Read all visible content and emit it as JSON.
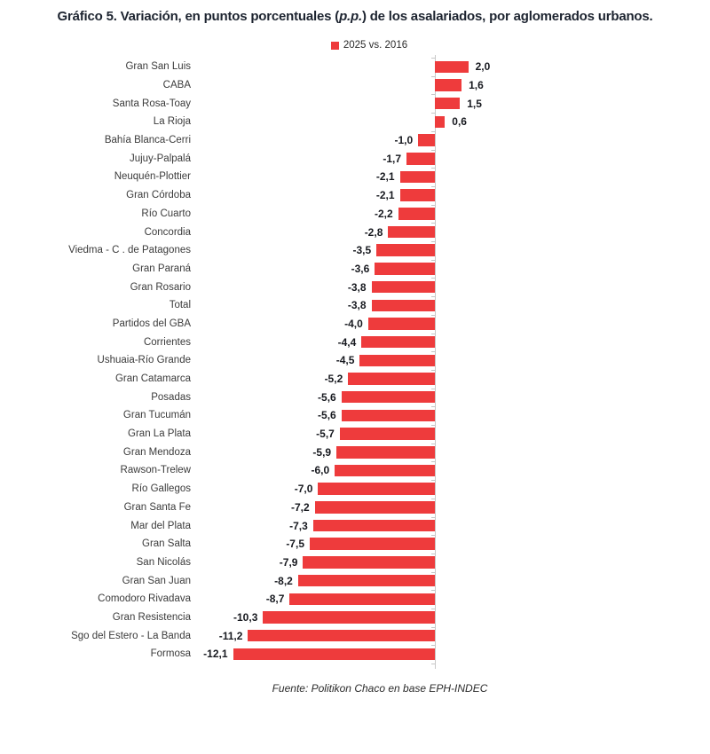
{
  "title": {
    "prefix": "Gráfico 5. Variación, en puntos porcentuales (",
    "italic": "p.p.",
    "suffix": ") de los asalariados, por aglomerados urbanos."
  },
  "legend": {
    "label": "2025 vs. 2016"
  },
  "source": "Fuente: Politikon Chaco en base EPH-INDEC",
  "colors": {
    "bar": "#ee3b3c",
    "axis": "#c9c9c9",
    "title_text": "#1d2430",
    "category_text": "#3b3b3b",
    "value_text": "#17191f"
  },
  "chart_data": {
    "type": "bar",
    "orientation": "horizontal",
    "title": "Gráfico 5. Variación, en puntos porcentuales (p.p.) de los asalariados, por aglomerados urbanos.",
    "series_name": "2025 vs. 2016",
    "legend_position": "top-center",
    "grid": false,
    "xlim": [
      -13,
      3
    ],
    "xlabel": "",
    "ylabel": "",
    "value_label_format": "decimal-comma, 1 decimal",
    "categories": [
      "Gran San Luis",
      "CABA",
      "Santa Rosa-Toay",
      "La Rioja",
      "Bahía Blanca-Cerri",
      "Jujuy-Palpalá",
      "Neuquén-Plottier",
      "Gran Córdoba",
      "Río Cuarto",
      "Concordia",
      "Viedma - C . de Patagones",
      "Gran Paraná",
      "Gran Rosario",
      "Total",
      "Partidos del GBA",
      "Corrientes",
      "Ushuaia-Río Grande",
      "Gran Catamarca",
      "Posadas",
      "Gran Tucumán",
      "Gran La Plata",
      "Gran Mendoza",
      "Rawson-Trelew",
      "Río Gallegos",
      "Gran Santa Fe",
      "Mar del Plata",
      "Gran Salta",
      "San Nicolás",
      "Gran San Juan",
      "Comodoro Rivadava",
      "Gran Resistencia",
      "Sgo del Estero - La Banda",
      "Formosa"
    ],
    "values": [
      2.0,
      1.6,
      1.5,
      0.6,
      -1.0,
      -1.7,
      -2.1,
      -2.1,
      -2.2,
      -2.8,
      -3.5,
      -3.6,
      -3.8,
      -3.8,
      -4.0,
      -4.4,
      -4.5,
      -5.2,
      -5.6,
      -5.6,
      -5.7,
      -5.9,
      -6.0,
      -7.0,
      -7.2,
      -7.3,
      -7.5,
      -7.9,
      -8.2,
      -8.7,
      -10.3,
      -11.2,
      -12.1
    ],
    "value_labels": [
      "2,0",
      "1,6",
      "1,5",
      "0,6",
      "-1,0",
      "-1,7",
      "-2,1",
      "-2,1",
      "-2,2",
      "-2,8",
      "-3,5",
      "-3,6",
      "-3,8",
      "-3,8",
      "-4,0",
      "-4,4",
      "-4,5",
      "-5,2",
      "-5,6",
      "-5,6",
      "-5,7",
      "-5,9",
      "-6,0",
      "-7,0",
      "-7,2",
      "-7,3",
      "-7,5",
      "-7,9",
      "-8,2",
      "-8,7",
      "-10,3",
      "-11,2",
      "-12,1"
    ]
  }
}
